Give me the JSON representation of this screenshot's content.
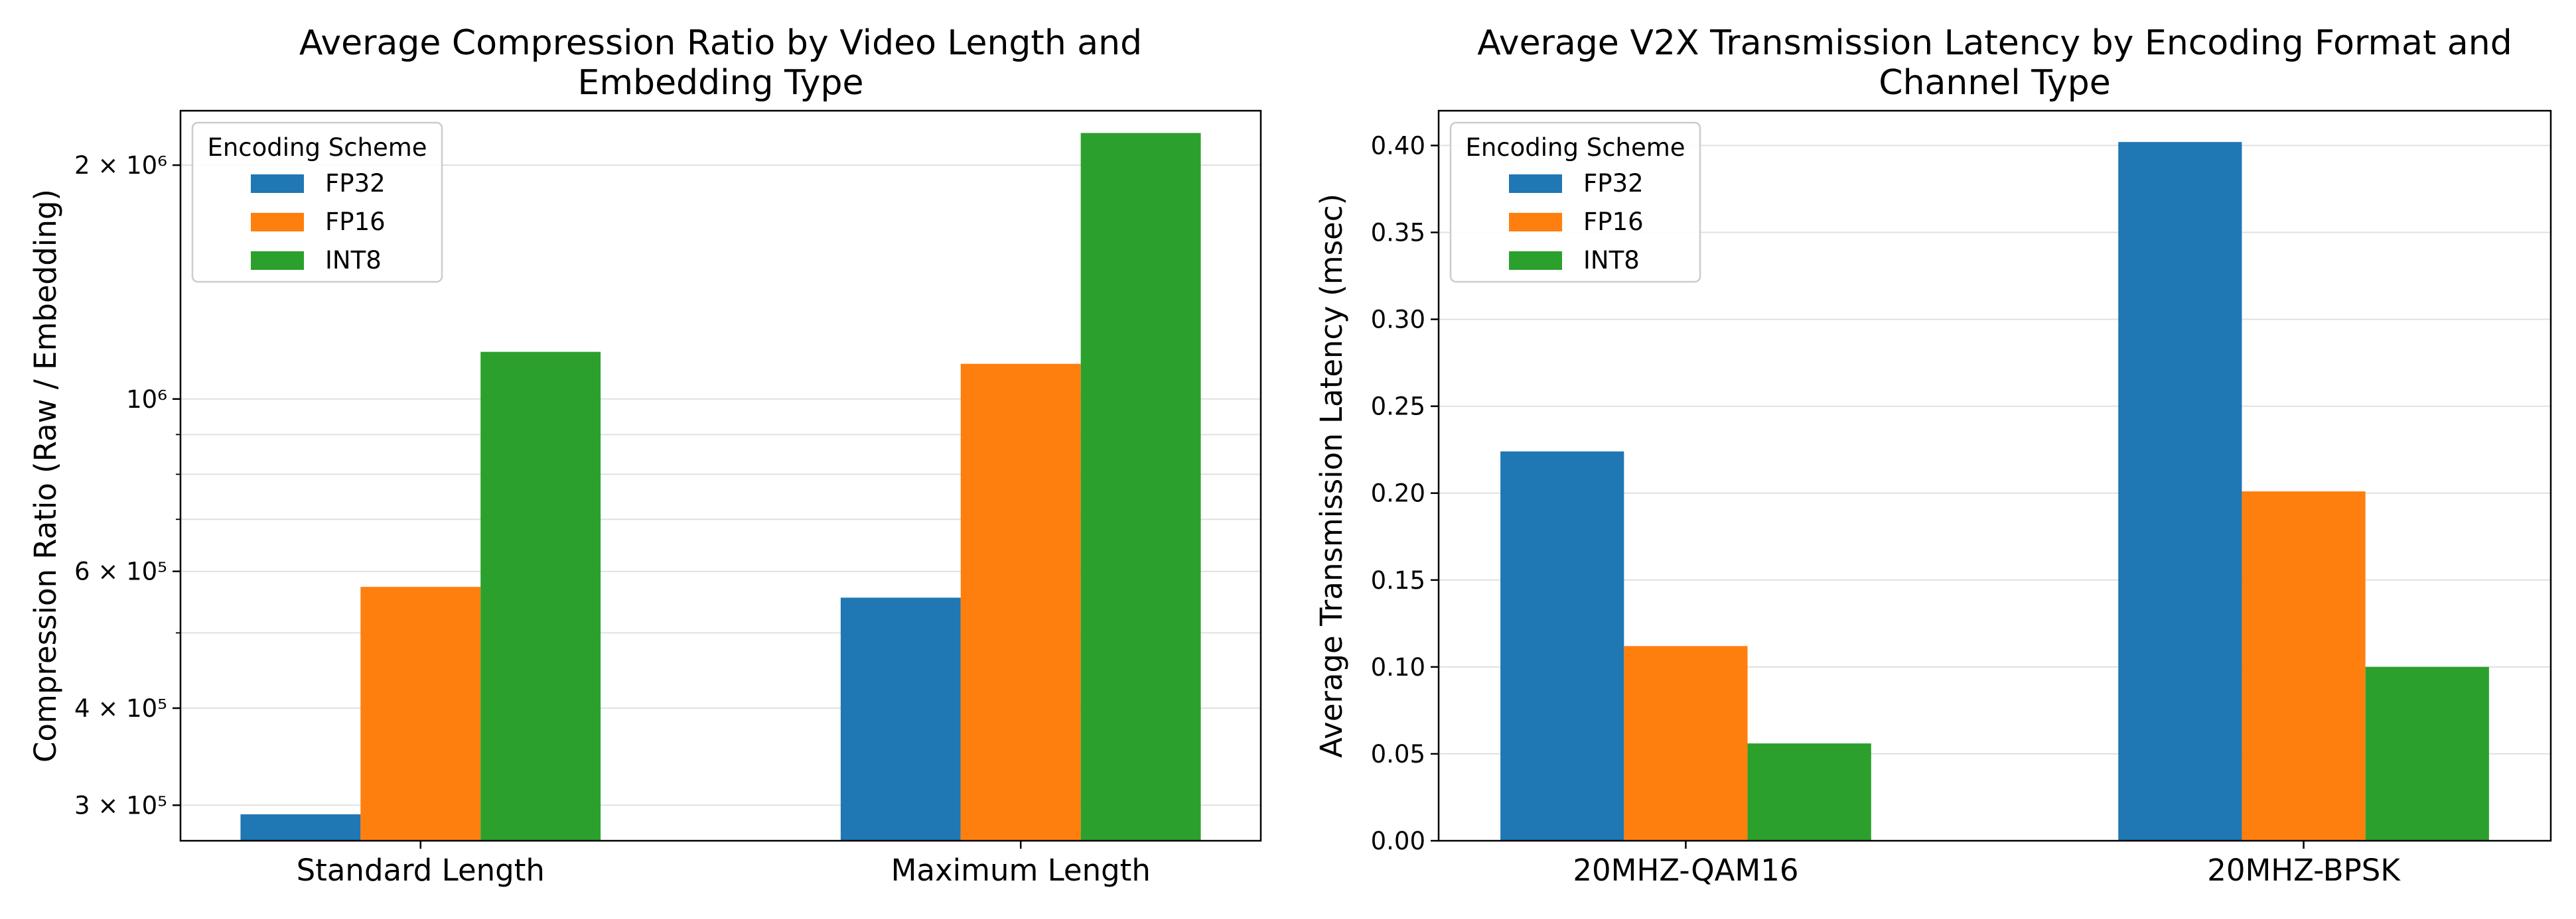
{
  "chart_data": [
    {
      "type": "bar",
      "title": "Average Compression Ratio by Video Length and Embedding Type",
      "title_lines": [
        "Average Compression Ratio by Video Length and",
        "Embedding Type"
      ],
      "xlabel": "",
      "ylabel": "Compression Ratio (Raw / Embedding)",
      "yscale": "log",
      "ylim": [
        270000,
        2350000
      ],
      "yticks": [
        {
          "value": 300000,
          "label": "3 × 10⁵"
        },
        {
          "value": 400000,
          "label": "4 × 10⁵"
        },
        {
          "value": 600000,
          "label": "6 × 10⁵"
        },
        {
          "value": 1000000,
          "label": "10⁶"
        },
        {
          "value": 2000000,
          "label": "2 × 10⁶"
        }
      ],
      "minor_grid": [
        500000,
        700000,
        800000,
        900000
      ],
      "grid": true,
      "legend_title": "Encoding Scheme",
      "legend_position": "upper-left",
      "categories": [
        "Standard Length",
        "Maximum Length"
      ],
      "series": [
        {
          "name": "FP32",
          "color": "#1f77b4",
          "values": [
            292000,
            555000
          ]
        },
        {
          "name": "FP16",
          "color": "#ff7f0e",
          "values": [
            573000,
            1110000
          ]
        },
        {
          "name": "INT8",
          "color": "#2ca02c",
          "values": [
            1150000,
            2200000
          ]
        }
      ]
    },
    {
      "type": "bar",
      "title": "Average V2X Transmission Latency by Encoding Format and Channel Type",
      "title_lines": [
        "Average V2X Transmission Latency by Encoding Format and",
        "Channel Type"
      ],
      "xlabel": "",
      "ylabel": "Average Transmission Latency (msec)",
      "yscale": "linear",
      "ylim": [
        0,
        0.42
      ],
      "yticks": [
        {
          "value": 0.0,
          "label": "0.00"
        },
        {
          "value": 0.05,
          "label": "0.05"
        },
        {
          "value": 0.1,
          "label": "0.10"
        },
        {
          "value": 0.15,
          "label": "0.15"
        },
        {
          "value": 0.2,
          "label": "0.20"
        },
        {
          "value": 0.25,
          "label": "0.25"
        },
        {
          "value": 0.3,
          "label": "0.30"
        },
        {
          "value": 0.35,
          "label": "0.35"
        },
        {
          "value": 0.4,
          "label": "0.40"
        }
      ],
      "grid": true,
      "legend_title": "Encoding Scheme",
      "legend_position": "upper-left",
      "categories": [
        "20MHZ-QAM16",
        "20MHZ-BPSK"
      ],
      "series": [
        {
          "name": "FP32",
          "color": "#1f77b4",
          "values": [
            0.224,
            0.402
          ]
        },
        {
          "name": "FP16",
          "color": "#ff7f0e",
          "values": [
            0.112,
            0.201
          ]
        },
        {
          "name": "INT8",
          "color": "#2ca02c",
          "values": [
            0.056,
            0.1
          ]
        }
      ]
    }
  ]
}
